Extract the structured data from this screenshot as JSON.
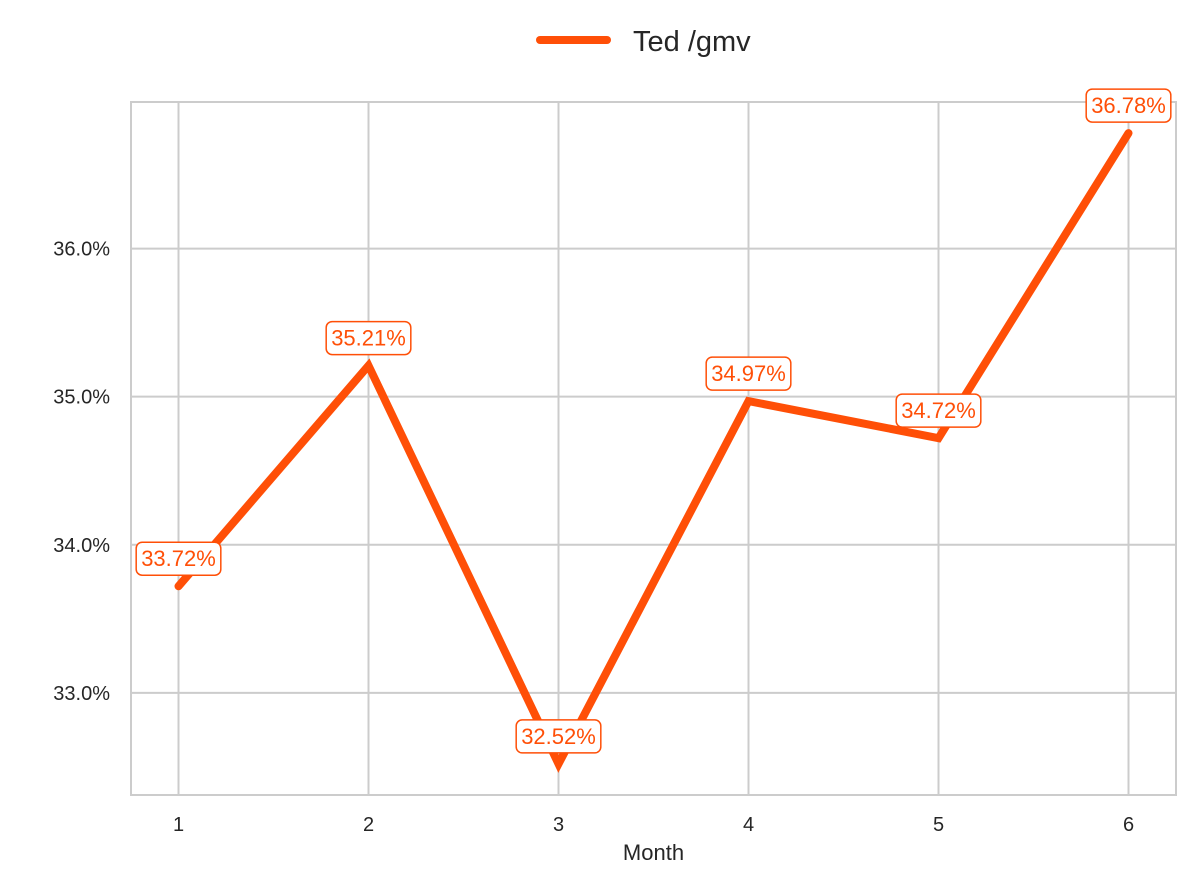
{
  "chart_data": {
    "type": "line",
    "title": "",
    "xlabel": "Month",
    "ylabel": "",
    "x": [
      1,
      2,
      3,
      4,
      5,
      6
    ],
    "x_tick_labels": [
      "1",
      "2",
      "3",
      "4",
      "5",
      "6"
    ],
    "y_ticks": [
      0.33,
      0.34,
      0.35,
      0.36
    ],
    "y_tick_labels": [
      "33.0%",
      "34.0%",
      "35.0%",
      "36.0%"
    ],
    "xlim": [
      0.75,
      6.25
    ],
    "ylim": [
      0.3231,
      0.3699
    ],
    "grid": true,
    "legend": "top-center",
    "series": [
      {
        "name": "Ted /gmv",
        "color": "#ff4f07",
        "values": [
          0.3372,
          0.3521,
          0.3252,
          0.3497,
          0.3472,
          0.3678
        ],
        "labels": [
          "33.72%",
          "35.21%",
          "32.52%",
          "34.97%",
          "34.72%",
          "36.78%"
        ]
      }
    ]
  }
}
